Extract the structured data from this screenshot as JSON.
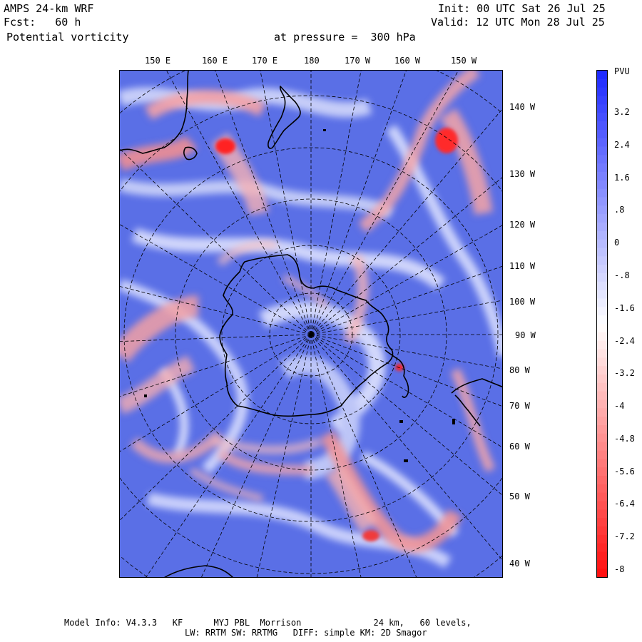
{
  "header": {
    "model": "AMPS 24-km WRF",
    "forecast": "Fcst:   60 h",
    "field": "Potential vorticity",
    "level": "at pressure =  300 hPa",
    "init": "Init: 00 UTC Sat 26 Jul 25",
    "valid": "Valid: 12 UTC Mon 28 Jul 25"
  },
  "map": {
    "top_longitudes": [
      "150 E",
      "160 E",
      "170 E",
      "180",
      "170 W",
      "160 W",
      "150 W"
    ],
    "right_longitudes": [
      "140 W",
      "130 W",
      "120 W",
      "110 W",
      "100 W",
      "90 W",
      "80 W",
      "70 W",
      "60 W",
      "50 W",
      "40 W"
    ]
  },
  "colorbar": {
    "unit": "PVU",
    "labels": [
      "3.2",
      "2.4",
      "1.6",
      ".8",
      "0",
      "-.8",
      "-1.6",
      "-2.4",
      "-3.2",
      "-4",
      "-4.8",
      "-5.6",
      "-6.4",
      "-7.2",
      "-8"
    ],
    "top_color": "#1f2bff",
    "mid_color": "#ffffff",
    "bottom_color": "#ff1010"
  },
  "colors": {
    "field_blue": "#5a6fe6",
    "field_light": "#dfe3ff",
    "field_red": "#f5a0a0",
    "field_deep_red": "#ff2a2a"
  },
  "footer": {
    "line1": "Model Info: V4.3.3   KF      MYJ PBL  Morrison              24 km,   60 levels,",
    "line2": "LW: RRTM SW: RRTMG   DIFF: simple KM: 2D Smagor"
  }
}
